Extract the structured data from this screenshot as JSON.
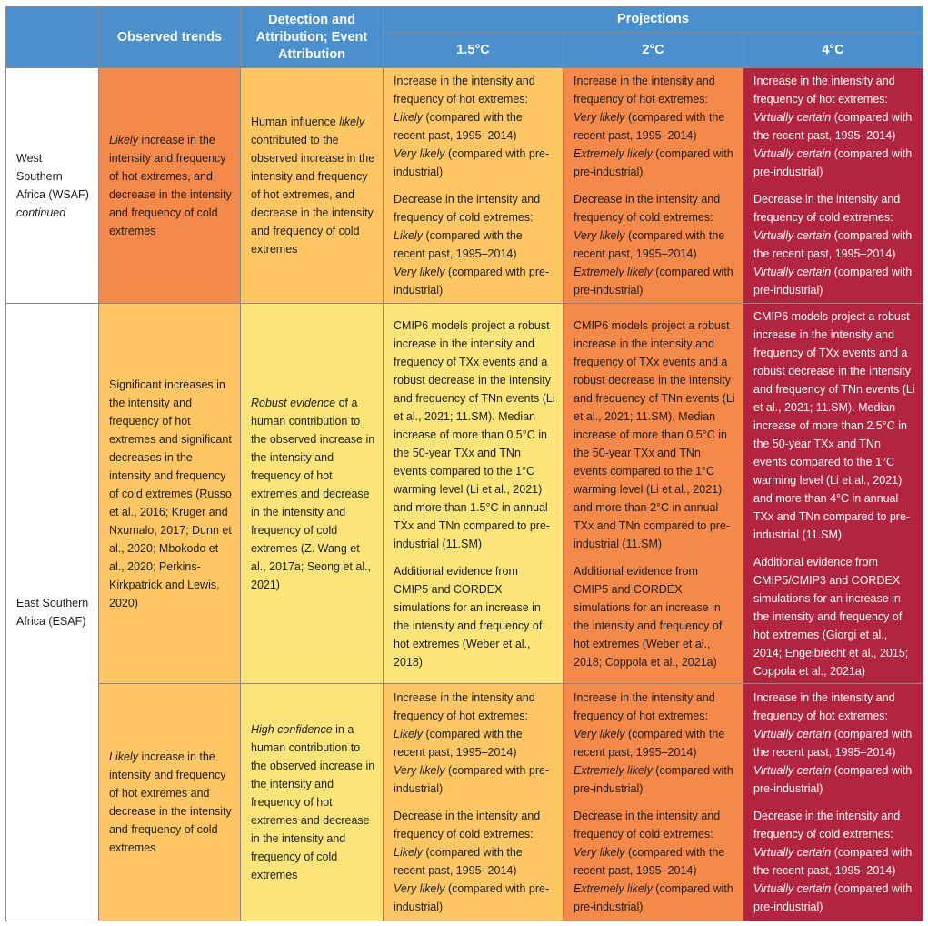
{
  "header": {
    "observed": "Observed trends",
    "detection": "Detection and Attribution; Event Attribution",
    "projections": "Projections",
    "p15": "1.5°C",
    "p2": "2°C",
    "p4": "4°C"
  },
  "colors": {
    "header_blue": "#4a8fce",
    "orange": "#f4894a",
    "yellow": "#fec763",
    "light_yellow": "#fde57a",
    "red": "#b3243f"
  },
  "wsaf": {
    "region": "West Southern Africa (WSAF)",
    "region_note": "continued",
    "observed": {
      "q": "Likely",
      "rest": " increase in the intensity and frequency of hot extremes, and decrease in the intensity and frequency of cold extremes"
    },
    "detection": {
      "a": "Human influence ",
      "q": "likely",
      "rest": " contributed to the observed increase in the intensity and frequency of hot extremes, and decrease in the intensity and frequency of cold extremes"
    },
    "p15": {
      "hot_intro": "Increase in the intensity and frequency of hot extremes:",
      "hot_q1": "Likely",
      "hot_t1": " (compared with the recent past, 1995–2014)",
      "hot_q2": "Very likely",
      "hot_t2": " (compared with pre-industrial)",
      "cold_intro": "Decrease in the intensity and frequency of cold extremes:",
      "cold_q1": "Likely",
      "cold_t1": " (compared with the recent past, 1995–2014)",
      "cold_q2": "Very likely",
      "cold_t2": " (compared with pre-industrial)"
    },
    "p2": {
      "hot_intro": "Increase in the intensity and frequency of hot extremes:",
      "hot_q1": "Very likely",
      "hot_t1": " (compared with the recent past, 1995–2014)",
      "hot_q2": "Extremely likely",
      "hot_t2": " (compared with pre-industrial)",
      "cold_intro": "Decrease in the intensity and frequency of cold extremes:",
      "cold_q1": "Very likely",
      "cold_t1": " (compared with the recent past, 1995–2014)",
      "cold_q2": "Extremely likely",
      "cold_t2": " (compared with pre-industrial)"
    },
    "p4": {
      "hot_intro": "Increase in the intensity and frequency of hot extremes:",
      "hot_q1": "Virtually certain",
      "hot_t1": " (compared with the recent past, 1995–2014)",
      "hot_q2": "Virtually certain",
      "hot_t2": " (compared with pre-industrial)",
      "cold_intro": "Decrease in the intensity and frequency of cold extremes:",
      "cold_q1": "Virtually certain",
      "cold_t1": " (compared with the recent past, 1995–2014)",
      "cold_q2": "Virtually certain",
      "cold_t2": " (compared with pre-industrial)"
    }
  },
  "esaf": {
    "region": "East Southern Africa (ESAF)",
    "r1": {
      "observed": "Significant increases in the intensity and frequency of hot extremes and significant decreases in the intensity and frequency of cold extremes (Russo et al., 2016; Kruger and Nxumalo, 2017; Dunn et al., 2020; Mbokodo et al., 2020; Perkins-Kirkpatrick and Lewis, 2020)",
      "detection": {
        "q": "Robust evidence",
        "rest": " of a human contribution to the observed increase in the intensity and frequency of hot extremes and decrease in the intensity and frequency of cold extremes (Z. Wang et al., 2017a; Seong et al., 2021)"
      },
      "p15_a": "CMIP6 models project a robust increase in the intensity and frequency of TXx events and a robust decrease in the intensity and frequency of TNn events (Li et al., 2021; 11.SM). Median increase of more than 0.5°C in the 50-year TXx and TNn events compared to the 1°C warming level (Li et al., 2021) and more than 1.5°C in annual TXx and TNn compared to pre-industrial (11.SM)",
      "p15_b": "Additional evidence from CMIP5 and CORDEX simulations for an increase in the intensity and frequency of hot extremes (Weber et al., 2018)",
      "p2_a": "CMIP6 models project a robust increase in the intensity and frequency of TXx events and a robust decrease in the intensity and frequency of TNn events (Li et al., 2021; 11.SM). Median increase of more than 0.5°C in the 50-year TXx and TNn events compared to the 1°C warming level (Li et al., 2021) and more than 2°C in annual TXx and TNn compared to pre-industrial (11.SM)",
      "p2_b": "Additional evidence from CMIP5 and CORDEX simulations for an increase in the intensity and frequency of hot extremes (Weber et al., 2018; Coppola et al., 2021a)",
      "p4_a": "CMIP6 models project a robust increase in the intensity and frequency of TXx events and a robust decrease in the intensity and frequency of TNn events (Li et al., 2021; 11.SM). Median increase of more than 2.5°C in the 50-year TXx and TNn events compared to the 1°C warming level (Li et al., 2021) and more than 4°C in annual TXx and TNn compared to pre-industrial (11.SM)",
      "p4_b": "Additional evidence from CMIP5/CMIP3 and CORDEX simulations for an increase in the intensity and frequency of hot extremes (Giorgi et al., 2014; Engelbrecht et al., 2015; Coppola et al., 2021a)"
    },
    "r2": {
      "observed": {
        "q": "Likely",
        "rest": " increase in the intensity and frequency of hot extremes and decrease in the intensity and frequency of cold extremes"
      },
      "detection": {
        "q": "High confidence",
        "rest": " in a human contribution to the observed increase in the intensity and frequency of hot extremes and decrease in the intensity and frequency of cold extremes"
      },
      "p15": {
        "hot_intro": "Increase in the intensity and frequency of hot extremes:",
        "hot_q1": "Likely",
        "hot_t1": " (compared with the recent past, 1995–2014)",
        "hot_q2": "Very likely",
        "hot_t2": " (compared with pre-industrial)",
        "cold_intro": "Decrease in the intensity and frequency of cold extremes:",
        "cold_q1": "Likely",
        "cold_t1": " (compared with the recent past, 1995–2014)",
        "cold_q2": "Very likely",
        "cold_t2": " (compared with pre-industrial)"
      },
      "p2": {
        "hot_intro": "Increase in the intensity and frequency of hot extremes:",
        "hot_q1": "Very likely",
        "hot_t1": " (compared with the recent past, 1995–2014)",
        "hot_q2": "Extremely likely",
        "hot_t2": " (compared with pre-industrial)",
        "cold_intro": "Decrease in the intensity and frequency of cold extremes:",
        "cold_q1": "Very likely",
        "cold_t1": " (compared with the recent past, 1995–2014)",
        "cold_q2": "Extremely likely",
        "cold_t2": " (compared with pre-industrial)"
      },
      "p4": {
        "hot_intro": "Increase in the intensity and frequency of hot extremes:",
        "hot_q1": "Virtually certain",
        "hot_t1": " (compared with the recent past, 1995–2014)",
        "hot_q2": "Virtually certain",
        "hot_t2": " (compared with pre-industrial)",
        "cold_intro": "Decrease in the intensity and frequency of cold extremes:",
        "cold_q1": "Virtually certain",
        "cold_t1": " (compared with the recent past, 1995–2014)",
        "cold_q2": "Virtually certain",
        "cold_t2": " (compared with pre-industrial)"
      }
    }
  }
}
